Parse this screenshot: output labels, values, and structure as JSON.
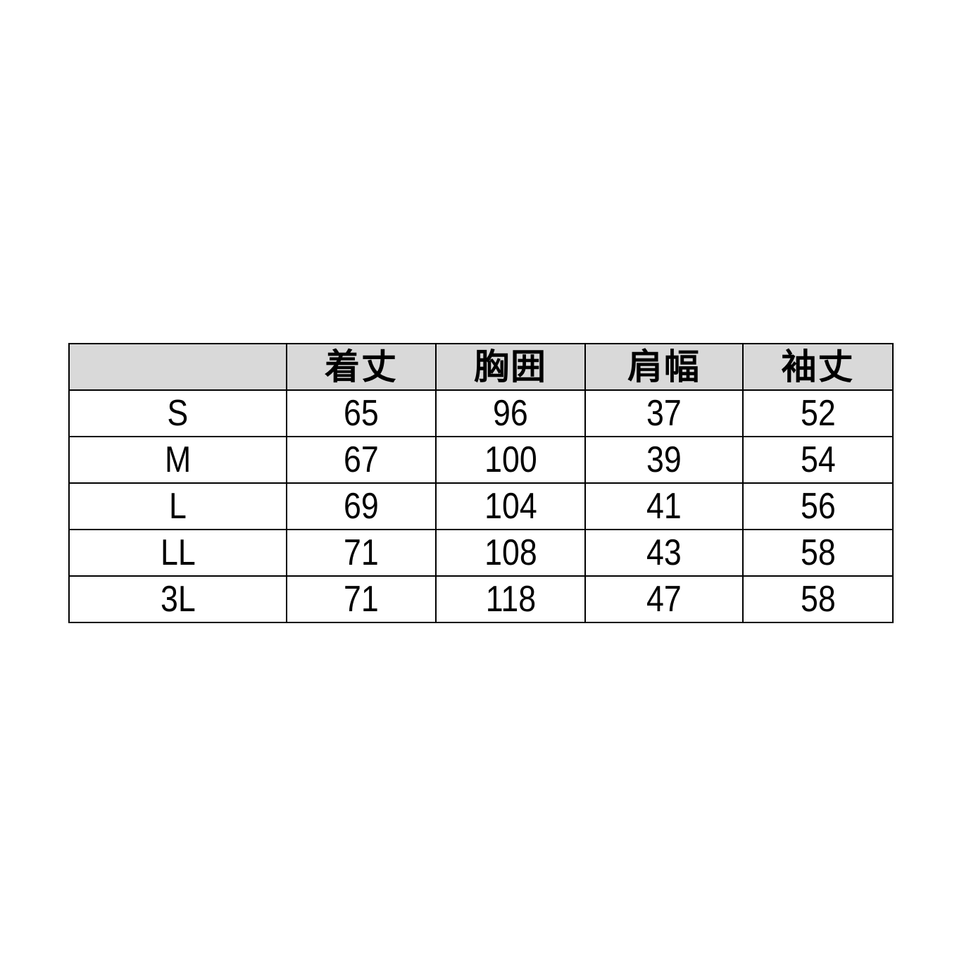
{
  "table": {
    "headers": [
      "",
      "着丈",
      "胸囲",
      "肩幅",
      "袖丈"
    ],
    "rows": [
      {
        "size": "S",
        "values": [
          "65",
          "96",
          "37",
          "52"
        ]
      },
      {
        "size": "M",
        "values": [
          "67",
          "100",
          "39",
          "54"
        ]
      },
      {
        "size": "L",
        "values": [
          "69",
          "104",
          "41",
          "56"
        ]
      },
      {
        "size": "LL",
        "values": [
          "71",
          "108",
          "43",
          "58"
        ]
      },
      {
        "size": "3L",
        "values": [
          "71",
          "118",
          "47",
          "58"
        ]
      }
    ],
    "header_bg": "#d9d9d9"
  }
}
